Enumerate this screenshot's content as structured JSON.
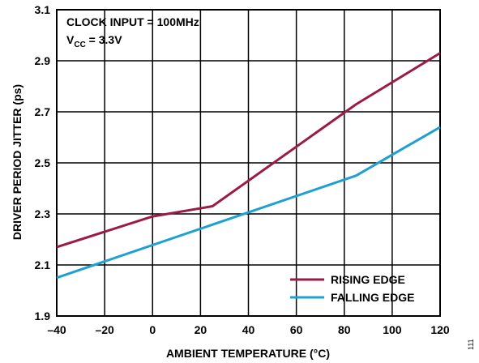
{
  "chart_data": {
    "type": "line",
    "xlabel": "AMBIENT TEMPERATURE (°C)",
    "ylabel": "DRIVER PERIOD JITTER (ps)",
    "xlim": [
      -40,
      120
    ],
    "ylim": [
      1.9,
      3.1
    ],
    "xticks": [
      -40,
      -20,
      0,
      20,
      40,
      60,
      80,
      100,
      120
    ],
    "xtick_labels": [
      "–40",
      "–20",
      "0",
      "20",
      "40",
      "60",
      "80",
      "100",
      "120"
    ],
    "yticks": [
      1.9,
      2.1,
      2.3,
      2.5,
      2.7,
      2.9,
      3.1
    ],
    "ytick_labels": [
      "1.9",
      "2.1",
      "2.3",
      "2.5",
      "2.7",
      "2.9",
      "3.1"
    ],
    "grid": true,
    "legend_position": "bottom-right",
    "annotations": {
      "line1": "CLOCK INPUT = 100MHz",
      "line2_prefix": "V",
      "line2_sub": "CC",
      "line2_suffix": " = 3.3V"
    },
    "figure_id": "111",
    "series": [
      {
        "name": "RISING EDGE",
        "color": "#9b1b47",
        "x": [
          -40,
          0,
          25,
          85,
          120
        ],
        "y": [
          2.17,
          2.29,
          2.33,
          2.73,
          2.93
        ]
      },
      {
        "name": "FALLING EDGE",
        "color": "#1ea0d0",
        "x": [
          -40,
          85,
          120
        ],
        "y": [
          2.05,
          2.45,
          2.64
        ]
      }
    ]
  }
}
